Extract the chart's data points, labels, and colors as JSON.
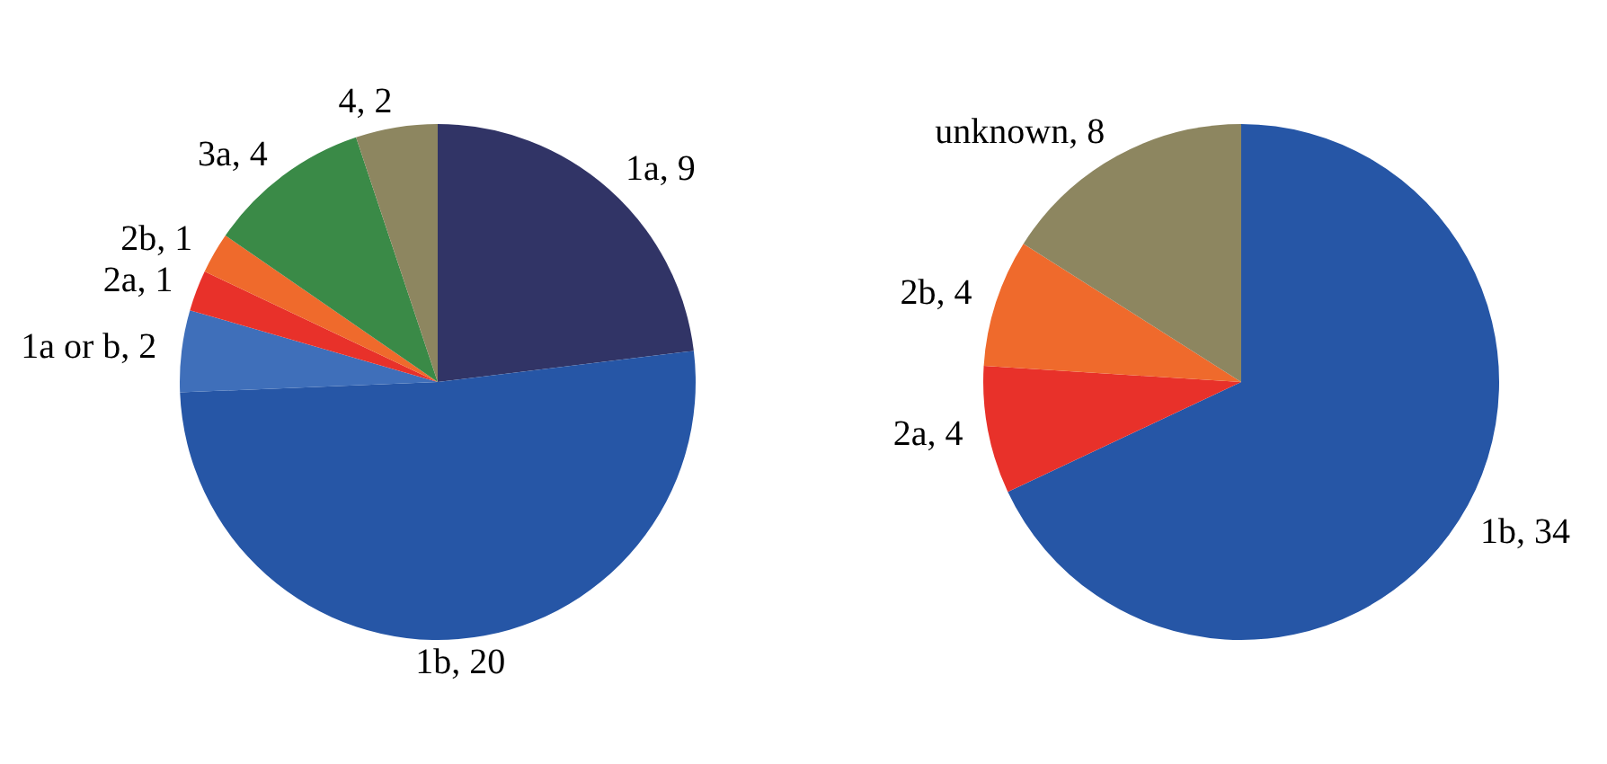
{
  "chart_data": [
    {
      "type": "pie",
      "categories": [
        "1a, 9",
        "1b, 20",
        "1a or b, 2",
        "2a, 1",
        "2b, 1",
        "3a, 4",
        "4, 2"
      ],
      "values": [
        9,
        20,
        2,
        1,
        1,
        4,
        2
      ],
      "colors": [
        "#313466",
        "#2656a6",
        "#3f6fba",
        "#e8312a",
        "#ef6a2c",
        "#3a8a47",
        "#8d8660"
      ]
    },
    {
      "type": "pie",
      "categories": [
        "1b, 34",
        "2a, 4",
        "2b, 4",
        "unknown, 8"
      ],
      "values": [
        34,
        4,
        4,
        8
      ],
      "colors": [
        "#2656a6",
        "#e8312a",
        "#ef6a2c",
        "#8d8660"
      ]
    }
  ]
}
